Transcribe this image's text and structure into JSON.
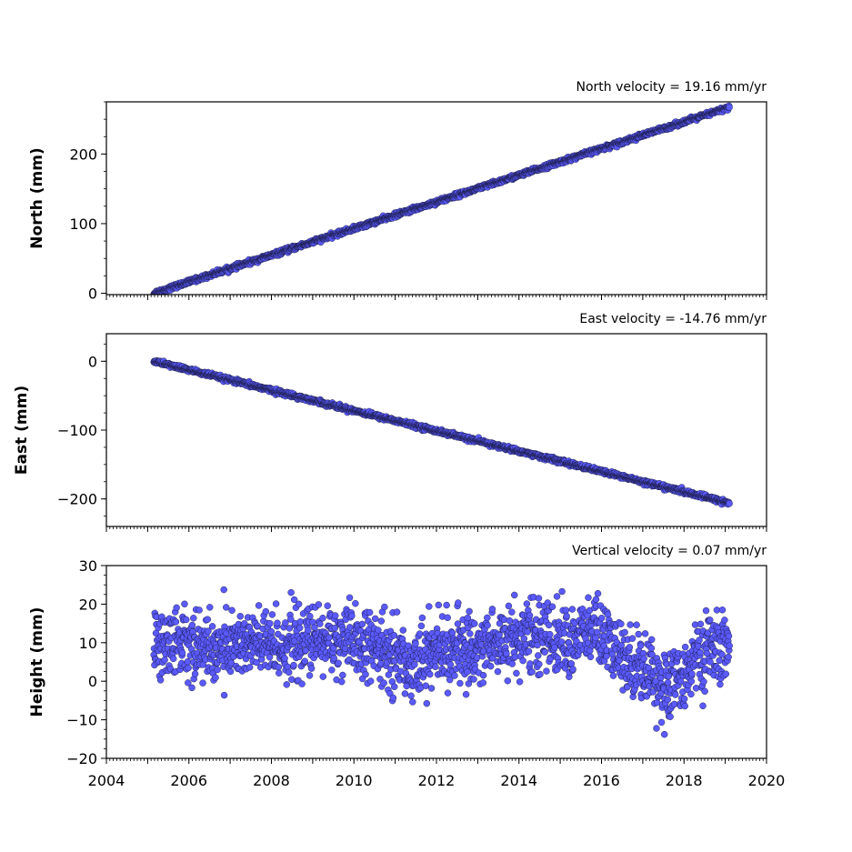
{
  "chart_data": [
    {
      "type": "scatter",
      "title": "North velocity = 19.16 mm/yr",
      "ylabel": "North (mm)",
      "xlim": [
        2004,
        2020
      ],
      "ylim": [
        -2,
        275
      ],
      "yticks": [
        0,
        100,
        200
      ],
      "ytick_labels": [
        "0",
        "100",
        "200"
      ],
      "xtick_labels": [],
      "series": [
        {
          "model": "linear",
          "x_start": 2005.15,
          "x_end": 2019.1,
          "y_at_start": 0,
          "slope": 19.16,
          "noise": 1.5,
          "color": "#5a5aff"
        }
      ]
    },
    {
      "type": "scatter",
      "title": "East velocity = -14.76 mm/yr",
      "ylabel": "East (mm)",
      "xlim": [
        2004,
        2020
      ],
      "ylim": [
        -240,
        40
      ],
      "yticks": [
        0,
        -100,
        -200
      ],
      "ytick_labels": [
        "0",
        "−100",
        "−200"
      ],
      "xtick_labels": [],
      "series": [
        {
          "model": "linear",
          "x_start": 2005.15,
          "x_end": 2019.1,
          "y_at_start": 0,
          "slope": -14.76,
          "noise": 1.5,
          "color": "#5a5aff"
        }
      ]
    },
    {
      "type": "scatter",
      "title": "Vertical velocity = 0.07 mm/yr",
      "ylabel": "Height (mm)",
      "xlim": [
        2004,
        2020
      ],
      "ylim": [
        -20,
        30
      ],
      "yticks": [
        -20,
        -10,
        0,
        10,
        20,
        30
      ],
      "ytick_labels": [
        "−20",
        "−10",
        "0",
        "10",
        "20",
        "30"
      ],
      "xticks": [
        2004,
        2006,
        2008,
        2010,
        2012,
        2014,
        2016,
        2018,
        2020
      ],
      "xtick_labels": [
        "2004",
        "2006",
        "2008",
        "2010",
        "2012",
        "2014",
        "2016",
        "2018",
        "2020"
      ],
      "series": [
        {
          "model": "noisy",
          "x_start": 2005.15,
          "x_end": 2019.1,
          "noise": 4.5,
          "color": "#5a5aff",
          "trend_x": [
            2005.2,
            2005.8,
            2006.5,
            2007.3,
            2008.0,
            2008.8,
            2009.5,
            2010.3,
            2011.0,
            2011.3,
            2012.0,
            2012.8,
            2013.7,
            2014.5,
            2015.3,
            2015.8,
            2016.5,
            2017.2,
            2017.6,
            2018.2,
            2018.8,
            2019.1
          ],
          "trend_y": [
            9,
            11,
            8,
            10,
            9,
            10,
            11,
            9,
            7,
            4,
            8,
            8,
            11,
            12,
            10,
            14,
            6,
            3,
            -3,
            5,
            9,
            8
          ]
        }
      ]
    }
  ]
}
